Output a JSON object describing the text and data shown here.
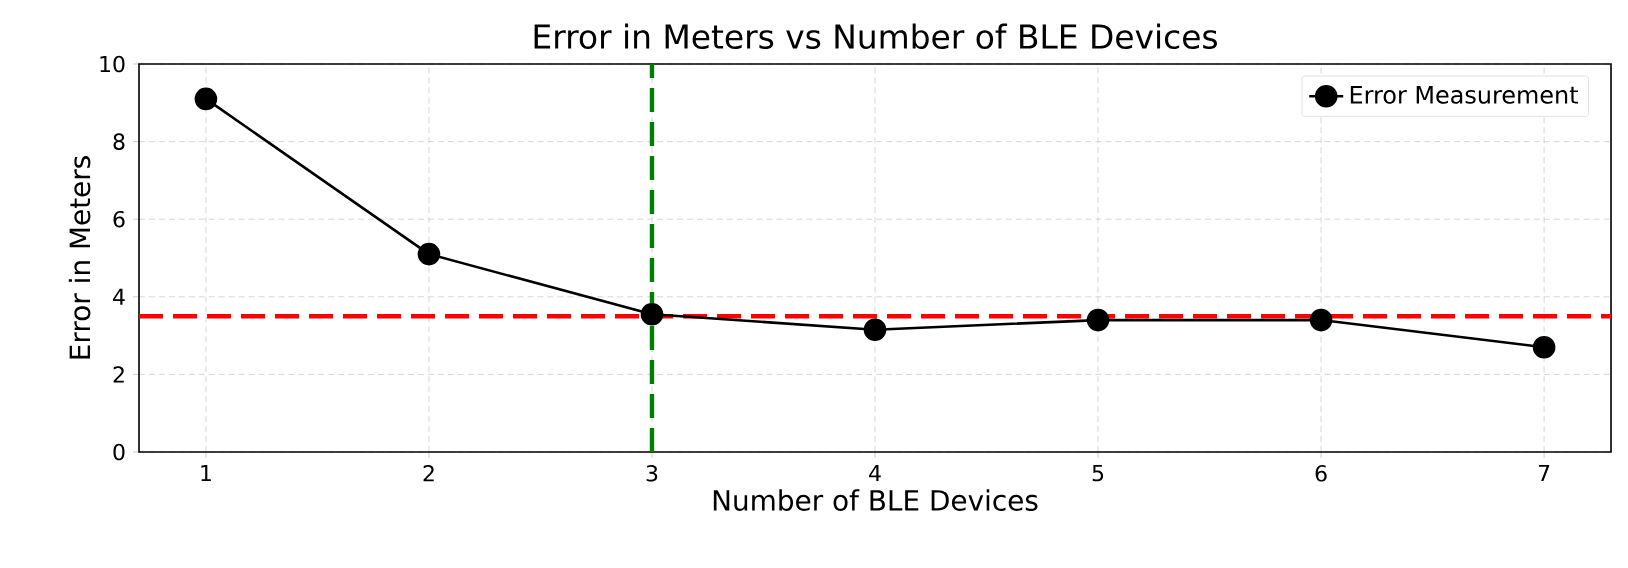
{
  "chart_data": {
    "type": "line",
    "title": "Error in Meters vs Number of BLE Devices",
    "xlabel": "Number of BLE Devices",
    "ylabel": "Error in Meters",
    "x": [
      1,
      2,
      3,
      4,
      5,
      6,
      7
    ],
    "series": [
      {
        "name": "Error Measurement",
        "color": "#000000",
        "values": [
          9.1,
          5.1,
          3.55,
          3.15,
          3.4,
          3.4,
          2.7
        ]
      }
    ],
    "xlim": [
      0.7,
      7.3
    ],
    "ylim": [
      0,
      10
    ],
    "xticks": [
      1,
      2,
      3,
      4,
      5,
      6,
      7
    ],
    "yticks": [
      0,
      2,
      4,
      6,
      8,
      10
    ],
    "ref_lines": [
      {
        "axis": "y",
        "value": 3.5,
        "color": "#ff0000",
        "line_style": "dashed"
      },
      {
        "axis": "x",
        "value": 3,
        "color": "#008000",
        "line_style": "dashed"
      }
    ],
    "grid": true,
    "legend": "top right",
    "marker": "circle",
    "line_style": "solid"
  }
}
